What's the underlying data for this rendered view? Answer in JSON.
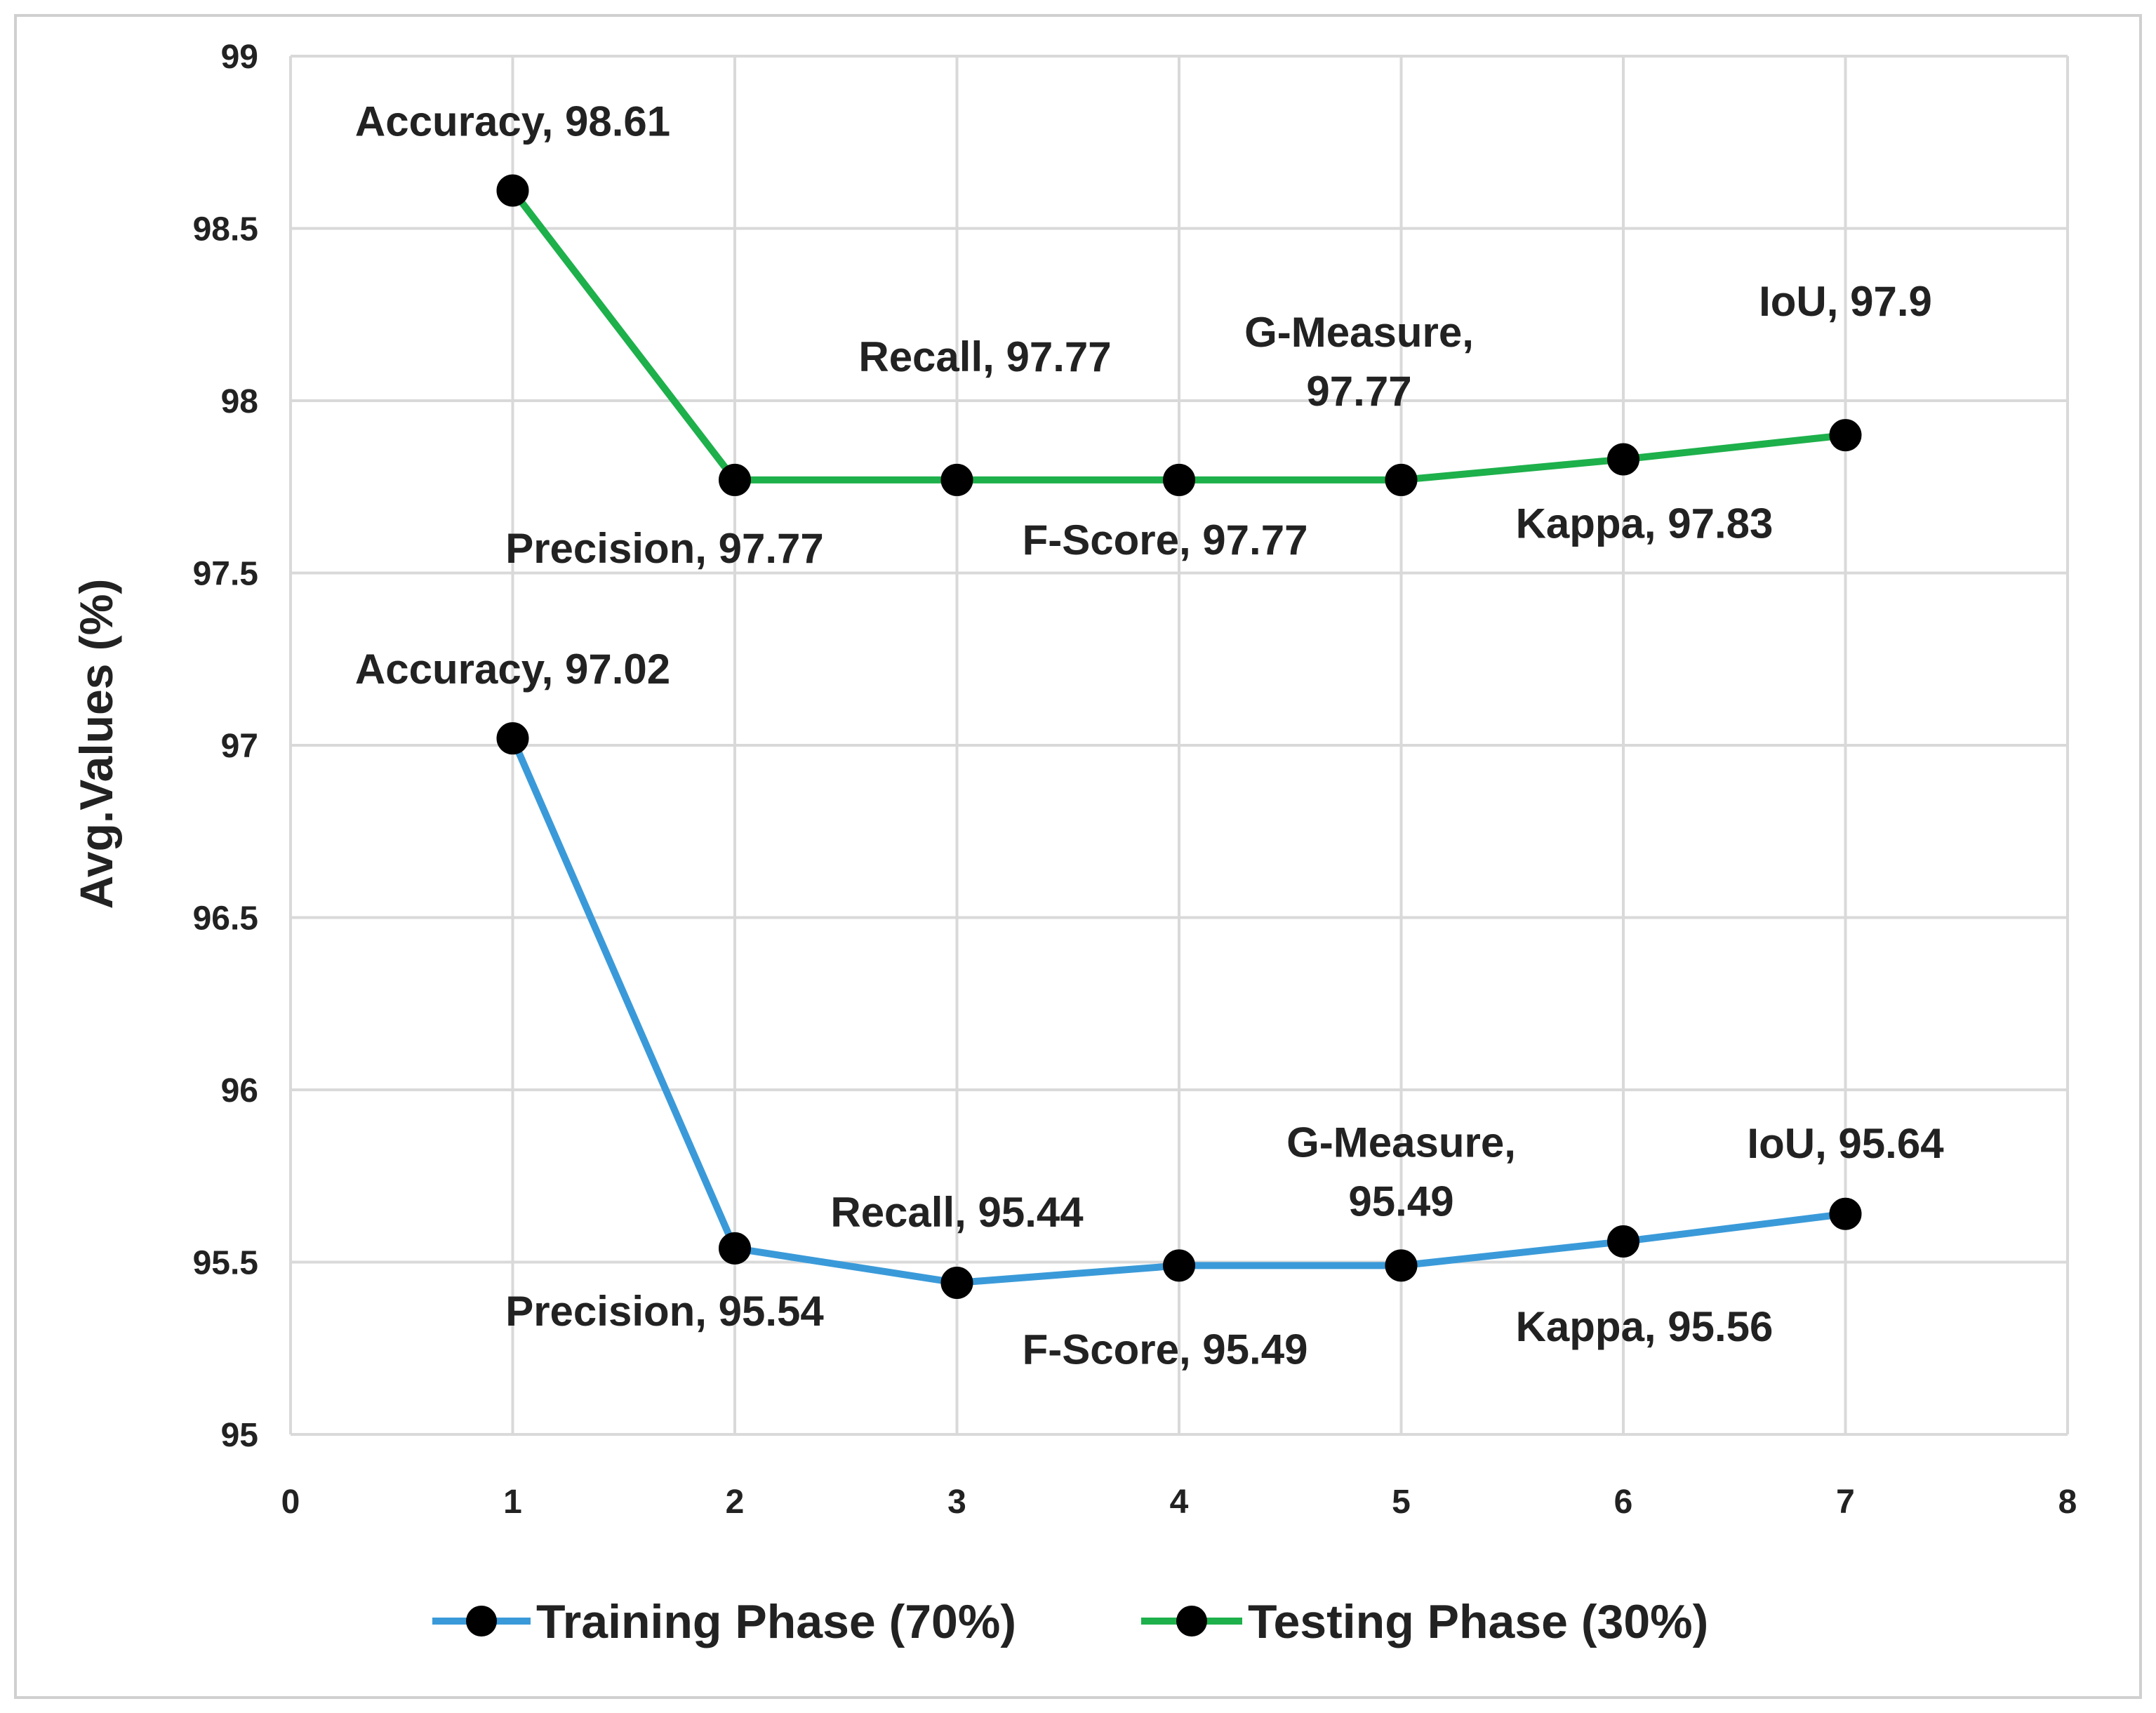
{
  "chart_data": {
    "type": "line",
    "title": "",
    "xlabel": "",
    "ylabel": "Avg.Values (%)",
    "xlim": [
      0,
      8
    ],
    "ylim": [
      95,
      99
    ],
    "x_ticks": [
      0,
      1,
      2,
      3,
      4,
      5,
      6,
      7,
      8
    ],
    "y_ticks": [
      95,
      95.5,
      96,
      96.5,
      97,
      97.5,
      98,
      98.5,
      99
    ],
    "grid": true,
    "legend_position": "bottom",
    "series": [
      {
        "name": "Training Phase (70%)",
        "color": "#3a9ad9",
        "marker_color": "#000000",
        "points": [
          {
            "x": 1,
            "y": 97.02,
            "label": "Accuracy, 97.02"
          },
          {
            "x": 2,
            "y": 95.54,
            "label": "Precision, 95.54"
          },
          {
            "x": 3,
            "y": 95.44,
            "label": "Recall, 95.44"
          },
          {
            "x": 4,
            "y": 95.49,
            "label": "F-Score, 95.49"
          },
          {
            "x": 5,
            "y": 95.49,
            "label": "G-Measure,\n95.49"
          },
          {
            "x": 6,
            "y": 95.56,
            "label": "Kappa, 95.56"
          },
          {
            "x": 7,
            "y": 95.64,
            "label": "IoU, 95.64"
          }
        ]
      },
      {
        "name": "Testing Phase (30%)",
        "color": "#1db04b",
        "marker_color": "#000000",
        "points": [
          {
            "x": 1,
            "y": 98.61,
            "label": "Accuracy, 98.61"
          },
          {
            "x": 2,
            "y": 97.77,
            "label": "Precision, 97.77"
          },
          {
            "x": 3,
            "y": 97.77,
            "label": "Recall, 97.77"
          },
          {
            "x": 4,
            "y": 97.77,
            "label": "F-Score, 97.77"
          },
          {
            "x": 5,
            "y": 97.77,
            "label": "G-Measure,\n97.77"
          },
          {
            "x": 6,
            "y": 97.83,
            "label": "Kappa, 97.83"
          },
          {
            "x": 7,
            "y": 97.9,
            "label": "IoU, 97.9"
          }
        ]
      }
    ]
  }
}
